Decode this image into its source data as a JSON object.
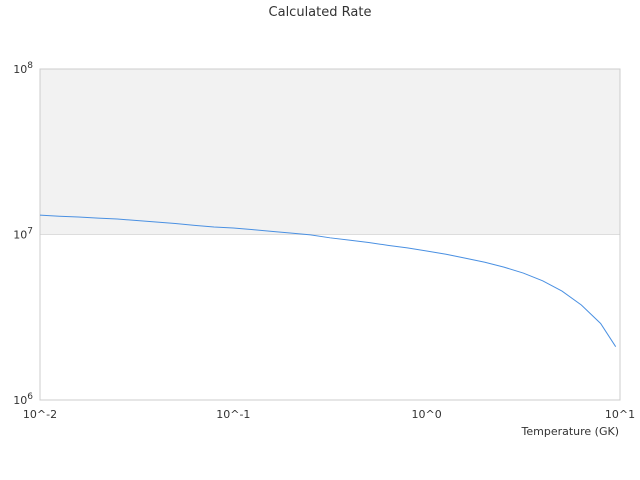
{
  "chart_data": {
    "type": "line",
    "title": "Calculated Rate",
    "xlabel": "Temperature (GK)",
    "ylabel": "",
    "x_scale": "log",
    "y_scale": "log",
    "xlim": [
      0.01,
      10
    ],
    "ylim": [
      1000000,
      100000000
    ],
    "x_ticks": [
      {
        "value": 0.01,
        "label": "10^-2"
      },
      {
        "value": 0.1,
        "label": "10^-1"
      },
      {
        "value": 1,
        "label": "10^0"
      },
      {
        "value": 10,
        "label": "10^1"
      }
    ],
    "y_ticks": [
      {
        "value": 1000000,
        "label": "10^6",
        "base": "10",
        "exp": "6"
      },
      {
        "value": 10000000,
        "label": "10^7",
        "base": "10",
        "exp": "7"
      },
      {
        "value": 100000000,
        "label": "10^8",
        "base": "10",
        "exp": "8"
      }
    ],
    "shaded_band": {
      "from": 10000000,
      "to": 100000000,
      "color": "#f2f2f2"
    },
    "series": [
      {
        "color": "#4a90e2",
        "points": [
          [
            0.01,
            13100000
          ],
          [
            0.0126,
            12900000
          ],
          [
            0.0158,
            12750000
          ],
          [
            0.02,
            12550000
          ],
          [
            0.0251,
            12400000
          ],
          [
            0.0316,
            12150000
          ],
          [
            0.0398,
            11900000
          ],
          [
            0.0501,
            11650000
          ],
          [
            0.0631,
            11350000
          ],
          [
            0.0794,
            11100000
          ],
          [
            0.1,
            10950000
          ],
          [
            0.126,
            10700000
          ],
          [
            0.158,
            10450000
          ],
          [
            0.2,
            10200000
          ],
          [
            0.251,
            9950000
          ],
          [
            0.316,
            9550000
          ],
          [
            0.398,
            9250000
          ],
          [
            0.501,
            8950000
          ],
          [
            0.631,
            8600000
          ],
          [
            0.794,
            8300000
          ],
          [
            1.0,
            7950000
          ],
          [
            1.26,
            7600000
          ],
          [
            1.58,
            7200000
          ],
          [
            2.0,
            6800000
          ],
          [
            2.51,
            6350000
          ],
          [
            3.16,
            5850000
          ],
          [
            3.98,
            5250000
          ],
          [
            5.01,
            4550000
          ],
          [
            6.31,
            3750000
          ],
          [
            7.94,
            2900000
          ],
          [
            9.5,
            2100000
          ]
        ]
      }
    ],
    "colors": {
      "axis": "#cccccc",
      "band_edge": "#dddddd"
    }
  }
}
